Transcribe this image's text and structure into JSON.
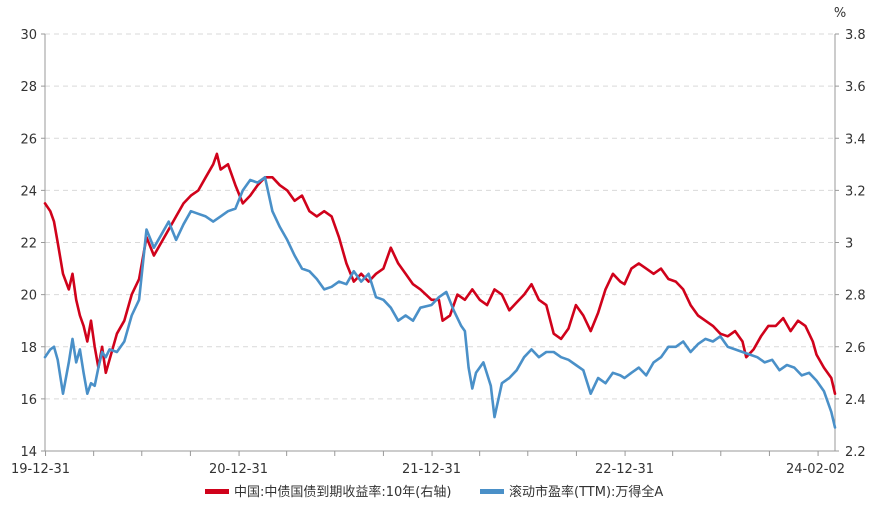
{
  "chart_data": {
    "type": "line",
    "title": "",
    "left_axis": {
      "ticks": [
        14,
        16,
        18,
        20,
        22,
        24,
        26,
        28,
        30
      ],
      "ylim": [
        14,
        30
      ]
    },
    "right_axis": {
      "unit": "%",
      "ticks": [
        2.2,
        2.4,
        2.6,
        2.8,
        3.0,
        3.2,
        3.4,
        3.6,
        3.8
      ],
      "tick_labels": [
        "2.2",
        "2.4",
        "2.6",
        "2.8",
        "3",
        "3.2",
        "3.4",
        "3.6",
        "3.8"
      ],
      "ylim": [
        2.2,
        3.8
      ]
    },
    "x_axis": {
      "tick_labels": [
        "19-12-31",
        "20-12-31",
        "21-12-31",
        "22-12-31",
        "24-02-02"
      ],
      "tick_values": [
        "2019-12-31",
        "2020-12-31",
        "2021-12-31",
        "2022-12-31",
        "2024-02-02"
      ],
      "xlim": [
        "2019-12-31",
        "2024-02-02"
      ]
    },
    "grid": true,
    "legend_position": "bottom-center",
    "series": [
      {
        "name": "中国:中债国债到期收益率:10年(右轴)",
        "axis": "right",
        "color": "#d0021b",
        "points": [
          [
            "2019-12-31",
            3.15
          ],
          [
            "2020-01-10",
            3.12
          ],
          [
            "2020-01-17",
            3.08
          ],
          [
            "2020-01-24",
            3.0
          ],
          [
            "2020-02-03",
            2.88
          ],
          [
            "2020-02-14",
            2.82
          ],
          [
            "2020-02-21",
            2.88
          ],
          [
            "2020-02-28",
            2.78
          ],
          [
            "2020-03-06",
            2.72
          ],
          [
            "2020-03-13",
            2.68
          ],
          [
            "2020-03-20",
            2.62
          ],
          [
            "2020-03-27",
            2.7
          ],
          [
            "2020-04-03",
            2.6
          ],
          [
            "2020-04-10",
            2.52
          ],
          [
            "2020-04-17",
            2.6
          ],
          [
            "2020-04-24",
            2.5
          ],
          [
            "2020-05-01",
            2.55
          ],
          [
            "2020-05-15",
            2.65
          ],
          [
            "2020-05-29",
            2.7
          ],
          [
            "2020-06-12",
            2.8
          ],
          [
            "2020-06-26",
            2.86
          ],
          [
            "2020-07-10",
            3.02
          ],
          [
            "2020-07-24",
            2.95
          ],
          [
            "2020-08-07",
            3.0
          ],
          [
            "2020-08-21",
            3.05
          ],
          [
            "2020-09-04",
            3.1
          ],
          [
            "2020-09-18",
            3.15
          ],
          [
            "2020-10-02",
            3.18
          ],
          [
            "2020-10-16",
            3.2
          ],
          [
            "2020-10-30",
            3.25
          ],
          [
            "2020-11-13",
            3.3
          ],
          [
            "2020-11-20",
            3.34
          ],
          [
            "2020-11-27",
            3.28
          ],
          [
            "2020-12-11",
            3.3
          ],
          [
            "2020-12-25",
            3.22
          ],
          [
            "2021-01-08",
            3.15
          ],
          [
            "2021-01-22",
            3.18
          ],
          [
            "2021-02-05",
            3.22
          ],
          [
            "2021-02-19",
            3.25
          ],
          [
            "2021-03-05",
            3.25
          ],
          [
            "2021-03-19",
            3.22
          ],
          [
            "2021-04-02",
            3.2
          ],
          [
            "2021-04-16",
            3.16
          ],
          [
            "2021-04-30",
            3.18
          ],
          [
            "2021-05-14",
            3.12
          ],
          [
            "2021-05-28",
            3.1
          ],
          [
            "2021-06-11",
            3.12
          ],
          [
            "2021-06-25",
            3.1
          ],
          [
            "2021-07-09",
            3.02
          ],
          [
            "2021-07-23",
            2.92
          ],
          [
            "2021-08-06",
            2.85
          ],
          [
            "2021-08-20",
            2.88
          ],
          [
            "2021-09-03",
            2.85
          ],
          [
            "2021-09-17",
            2.88
          ],
          [
            "2021-10-01",
            2.9
          ],
          [
            "2021-10-15",
            2.98
          ],
          [
            "2021-10-29",
            2.92
          ],
          [
            "2021-11-12",
            2.88
          ],
          [
            "2021-11-26",
            2.84
          ],
          [
            "2021-12-10",
            2.82
          ],
          [
            "2021-12-31",
            2.78
          ],
          [
            "2022-01-14",
            2.78
          ],
          [
            "2022-01-21",
            2.7
          ],
          [
            "2022-02-04",
            2.72
          ],
          [
            "2022-02-18",
            2.8
          ],
          [
            "2022-03-04",
            2.78
          ],
          [
            "2022-03-18",
            2.82
          ],
          [
            "2022-04-01",
            2.78
          ],
          [
            "2022-04-15",
            2.76
          ],
          [
            "2022-04-29",
            2.82
          ],
          [
            "2022-05-13",
            2.8
          ],
          [
            "2022-05-27",
            2.74
          ],
          [
            "2022-06-10",
            2.77
          ],
          [
            "2022-06-24",
            2.8
          ],
          [
            "2022-07-08",
            2.84
          ],
          [
            "2022-07-22",
            2.78
          ],
          [
            "2022-08-05",
            2.76
          ],
          [
            "2022-08-19",
            2.65
          ],
          [
            "2022-09-02",
            2.63
          ],
          [
            "2022-09-16",
            2.67
          ],
          [
            "2022-09-30",
            2.76
          ],
          [
            "2022-10-14",
            2.72
          ],
          [
            "2022-10-28",
            2.66
          ],
          [
            "2022-11-11",
            2.73
          ],
          [
            "2022-11-25",
            2.82
          ],
          [
            "2022-12-09",
            2.88
          ],
          [
            "2022-12-23",
            2.85
          ],
          [
            "2022-12-31",
            2.84
          ],
          [
            "2023-01-13",
            2.9
          ],
          [
            "2023-01-27",
            2.92
          ],
          [
            "2023-02-10",
            2.9
          ],
          [
            "2023-02-24",
            2.88
          ],
          [
            "2023-03-10",
            2.9
          ],
          [
            "2023-03-24",
            2.86
          ],
          [
            "2023-04-07",
            2.85
          ],
          [
            "2023-04-21",
            2.82
          ],
          [
            "2023-05-05",
            2.76
          ],
          [
            "2023-05-19",
            2.72
          ],
          [
            "2023-06-02",
            2.7
          ],
          [
            "2023-06-16",
            2.68
          ],
          [
            "2023-06-30",
            2.65
          ],
          [
            "2023-07-14",
            2.64
          ],
          [
            "2023-07-28",
            2.66
          ],
          [
            "2023-08-11",
            2.62
          ],
          [
            "2023-08-18",
            2.56
          ],
          [
            "2023-09-01",
            2.59
          ],
          [
            "2023-09-15",
            2.64
          ],
          [
            "2023-09-29",
            2.68
          ],
          [
            "2023-10-13",
            2.68
          ],
          [
            "2023-10-27",
            2.71
          ],
          [
            "2023-11-10",
            2.66
          ],
          [
            "2023-11-24",
            2.7
          ],
          [
            "2023-12-08",
            2.68
          ],
          [
            "2023-12-22",
            2.62
          ],
          [
            "2023-12-29",
            2.57
          ],
          [
            "2024-01-12",
            2.52
          ],
          [
            "2024-01-26",
            2.48
          ],
          [
            "2024-02-02",
            2.42
          ]
        ]
      },
      {
        "name": "滚动市盈率(TTM):万得全A",
        "axis": "left",
        "color": "#4a90c8",
        "points": [
          [
            "2019-12-31",
            17.6
          ],
          [
            "2020-01-10",
            17.9
          ],
          [
            "2020-01-17",
            18.0
          ],
          [
            "2020-01-24",
            17.5
          ],
          [
            "2020-02-03",
            16.2
          ],
          [
            "2020-02-14",
            17.4
          ],
          [
            "2020-02-21",
            18.3
          ],
          [
            "2020-02-28",
            17.4
          ],
          [
            "2020-03-06",
            17.9
          ],
          [
            "2020-03-13",
            17.0
          ],
          [
            "2020-03-20",
            16.2
          ],
          [
            "2020-03-27",
            16.6
          ],
          [
            "2020-04-03",
            16.5
          ],
          [
            "2020-04-10",
            17.2
          ],
          [
            "2020-04-17",
            17.8
          ],
          [
            "2020-04-24",
            17.6
          ],
          [
            "2020-05-01",
            17.9
          ],
          [
            "2020-05-15",
            17.8
          ],
          [
            "2020-05-29",
            18.2
          ],
          [
            "2020-06-12",
            19.2
          ],
          [
            "2020-06-26",
            19.8
          ],
          [
            "2020-07-10",
            22.5
          ],
          [
            "2020-07-24",
            21.8
          ],
          [
            "2020-08-07",
            22.3
          ],
          [
            "2020-08-21",
            22.8
          ],
          [
            "2020-09-04",
            22.1
          ],
          [
            "2020-09-18",
            22.7
          ],
          [
            "2020-10-02",
            23.2
          ],
          [
            "2020-10-16",
            23.1
          ],
          [
            "2020-10-30",
            23.0
          ],
          [
            "2020-11-13",
            22.8
          ],
          [
            "2020-11-27",
            23.0
          ],
          [
            "2020-12-11",
            23.2
          ],
          [
            "2020-12-25",
            23.3
          ],
          [
            "2021-01-08",
            24.0
          ],
          [
            "2021-01-22",
            24.4
          ],
          [
            "2021-02-05",
            24.3
          ],
          [
            "2021-02-19",
            24.5
          ],
          [
            "2021-03-05",
            23.2
          ],
          [
            "2021-03-19",
            22.6
          ],
          [
            "2021-04-02",
            22.1
          ],
          [
            "2021-04-16",
            21.5
          ],
          [
            "2021-04-30",
            21.0
          ],
          [
            "2021-05-14",
            20.9
          ],
          [
            "2021-05-28",
            20.6
          ],
          [
            "2021-06-11",
            20.2
          ],
          [
            "2021-06-25",
            20.3
          ],
          [
            "2021-07-09",
            20.5
          ],
          [
            "2021-07-23",
            20.4
          ],
          [
            "2021-08-06",
            20.9
          ],
          [
            "2021-08-20",
            20.5
          ],
          [
            "2021-09-03",
            20.8
          ],
          [
            "2021-09-17",
            19.9
          ],
          [
            "2021-10-01",
            19.8
          ],
          [
            "2021-10-15",
            19.5
          ],
          [
            "2021-10-29",
            19.0
          ],
          [
            "2021-11-12",
            19.2
          ],
          [
            "2021-11-26",
            19.0
          ],
          [
            "2021-12-10",
            19.5
          ],
          [
            "2021-12-31",
            19.6
          ],
          [
            "2022-01-14",
            19.9
          ],
          [
            "2022-01-28",
            20.1
          ],
          [
            "2022-02-11",
            19.4
          ],
          [
            "2022-02-25",
            18.8
          ],
          [
            "2022-03-04",
            18.6
          ],
          [
            "2022-03-11",
            17.2
          ],
          [
            "2022-03-18",
            16.4
          ],
          [
            "2022-03-25",
            17.0
          ],
          [
            "2022-04-08",
            17.4
          ],
          [
            "2022-04-22",
            16.5
          ],
          [
            "2022-04-29",
            15.3
          ],
          [
            "2022-05-13",
            16.6
          ],
          [
            "2022-05-27",
            16.8
          ],
          [
            "2022-06-10",
            17.1
          ],
          [
            "2022-06-24",
            17.6
          ],
          [
            "2022-07-08",
            17.9
          ],
          [
            "2022-07-22",
            17.6
          ],
          [
            "2022-08-05",
            17.8
          ],
          [
            "2022-08-19",
            17.8
          ],
          [
            "2022-09-02",
            17.6
          ],
          [
            "2022-09-16",
            17.5
          ],
          [
            "2022-09-30",
            17.3
          ],
          [
            "2022-10-14",
            17.1
          ],
          [
            "2022-10-28",
            16.2
          ],
          [
            "2022-11-11",
            16.8
          ],
          [
            "2022-11-25",
            16.6
          ],
          [
            "2022-12-09",
            17.0
          ],
          [
            "2022-12-23",
            16.9
          ],
          [
            "2022-12-31",
            16.8
          ],
          [
            "2023-01-13",
            17.0
          ],
          [
            "2023-01-27",
            17.2
          ],
          [
            "2023-02-10",
            16.9
          ],
          [
            "2023-02-24",
            17.4
          ],
          [
            "2023-03-10",
            17.6
          ],
          [
            "2023-03-24",
            18.0
          ],
          [
            "2023-04-07",
            18.0
          ],
          [
            "2023-04-21",
            18.2
          ],
          [
            "2023-05-05",
            17.8
          ],
          [
            "2023-05-19",
            18.1
          ],
          [
            "2023-06-02",
            18.3
          ],
          [
            "2023-06-16",
            18.2
          ],
          [
            "2023-06-30",
            18.4
          ],
          [
            "2023-07-14",
            18.0
          ],
          [
            "2023-07-28",
            17.9
          ],
          [
            "2023-08-11",
            17.8
          ],
          [
            "2023-08-25",
            17.7
          ],
          [
            "2023-09-08",
            17.6
          ],
          [
            "2023-09-22",
            17.4
          ],
          [
            "2023-10-06",
            17.5
          ],
          [
            "2023-10-20",
            17.1
          ],
          [
            "2023-11-03",
            17.3
          ],
          [
            "2023-11-17",
            17.2
          ],
          [
            "2023-12-01",
            16.9
          ],
          [
            "2023-12-15",
            17.0
          ],
          [
            "2023-12-29",
            16.7
          ],
          [
            "2024-01-12",
            16.3
          ],
          [
            "2024-01-26",
            15.5
          ],
          [
            "2024-02-02",
            14.9
          ]
        ]
      }
    ]
  }
}
